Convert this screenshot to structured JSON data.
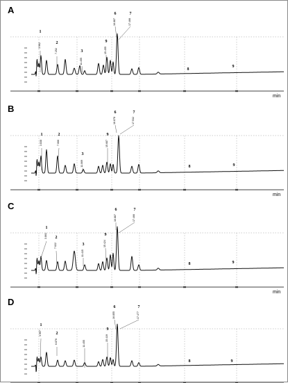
{
  "figure": {
    "x_unit": "min"
  },
  "chart_data": [
    {
      "type": "line",
      "panel": "A",
      "x_unit": "min",
      "peaks": [
        {
          "label": "1",
          "rt": "3.962"
        },
        {
          "label": "2",
          "rt": "7.252"
        },
        {
          "label": "3",
          "rt": "11.455"
        },
        {
          "label": "9",
          "rt": "15.455"
        },
        {
          "label": "6",
          "rt": "16.887"
        },
        {
          "label": "7",
          "rt": "17.466"
        },
        {
          "label": "8",
          "rt": ""
        },
        {
          "label": "9",
          "rt": ""
        }
      ]
    },
    {
      "type": "line",
      "panel": "B",
      "x_unit": "min",
      "peaks": [
        {
          "label": "1",
          "rt": "3.838"
        },
        {
          "label": "2",
          "rt": "7.066"
        },
        {
          "label": "3",
          "rt": "11.069"
        },
        {
          "label": "9",
          "rt": "15.687"
        },
        {
          "label": "6",
          "rt": "16.878"
        },
        {
          "label": "7",
          "rt": "17.532"
        },
        {
          "label": "8",
          "rt": ""
        },
        {
          "label": "9",
          "rt": ""
        }
      ]
    },
    {
      "type": "line",
      "panel": "C",
      "x_unit": "min",
      "peaks": [
        {
          "label": "1",
          "rt": "3.861"
        },
        {
          "label": "2",
          "rt": "7.022"
        },
        {
          "label": "3",
          "rt": "11.415"
        },
        {
          "label": "9",
          "rt": "15.424"
        },
        {
          "label": "6",
          "rt": "16.887"
        },
        {
          "label": "7",
          "rt": "17.466"
        },
        {
          "label": "8",
          "rt": ""
        },
        {
          "label": "9",
          "rt": ""
        }
      ]
    },
    {
      "type": "line",
      "panel": "D",
      "x_unit": "min",
      "peaks": [
        {
          "label": "1",
          "rt": "3.957"
        },
        {
          "label": "2",
          "rt": "6.876"
        },
        {
          "label": "",
          "rt": "11.455"
        },
        {
          "label": "9",
          "rt": "15.419"
        },
        {
          "label": "6",
          "rt": "16.855"
        },
        {
          "label": "7",
          "rt": "17.477"
        },
        {
          "label": "8",
          "rt": ""
        },
        {
          "label": "9",
          "rt": ""
        }
      ]
    }
  ]
}
